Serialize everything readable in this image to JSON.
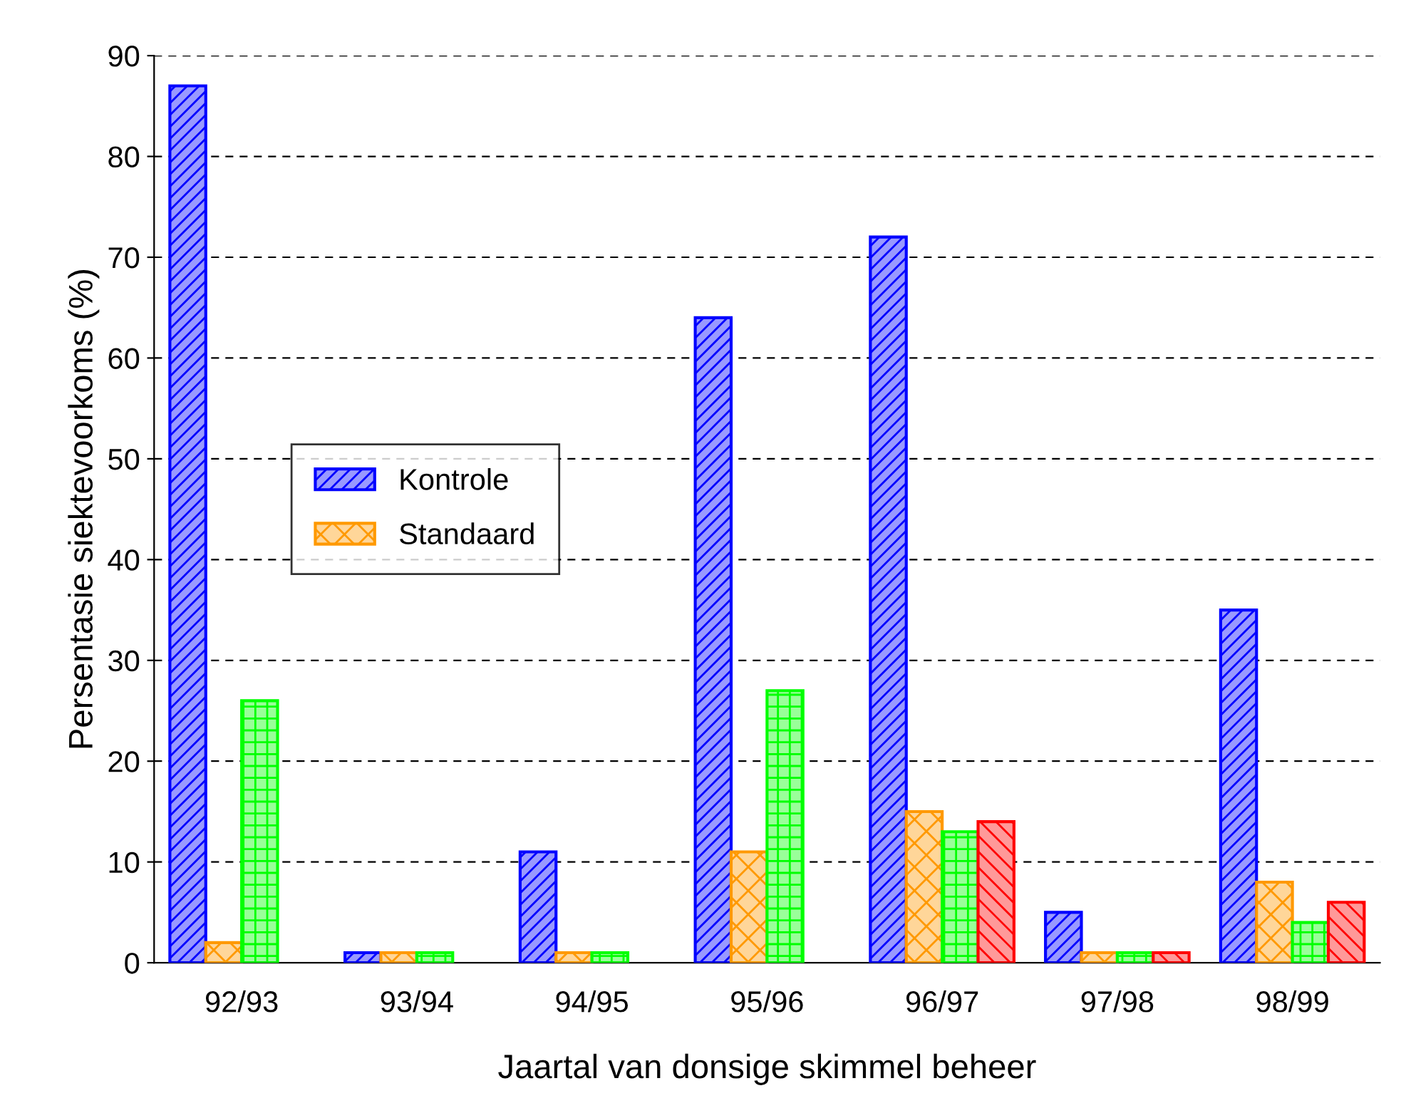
{
  "chart_data": {
    "type": "bar",
    "xlabel": "Jaartal van donsige skimmel beheer",
    "ylabel": "Persentasie siektevoorkoms (%)",
    "categories": [
      "92/93",
      "93/94",
      "94/95",
      "95/96",
      "96/97",
      "97/98",
      "98/99"
    ],
    "series": [
      {
        "name": "Kontrole",
        "color": "#0000ff",
        "values": [
          87,
          1,
          11,
          64,
          72,
          5,
          35
        ]
      },
      {
        "name": "Standaard",
        "color": "#ff9900",
        "values": [
          2,
          1,
          1,
          11,
          15,
          1,
          8
        ]
      },
      {
        "color": "#00ff00",
        "values": [
          26,
          1,
          1,
          27,
          13,
          1,
          4
        ]
      },
      {
        "color": "#ff0000",
        "values": [
          null,
          null,
          null,
          null,
          14,
          1,
          6
        ]
      }
    ],
    "ylim": [
      0,
      90
    ],
    "yticks": [
      0,
      10,
      20,
      30,
      40,
      50,
      60,
      70,
      80,
      90
    ],
    "grid": "y",
    "legend": "center left"
  }
}
